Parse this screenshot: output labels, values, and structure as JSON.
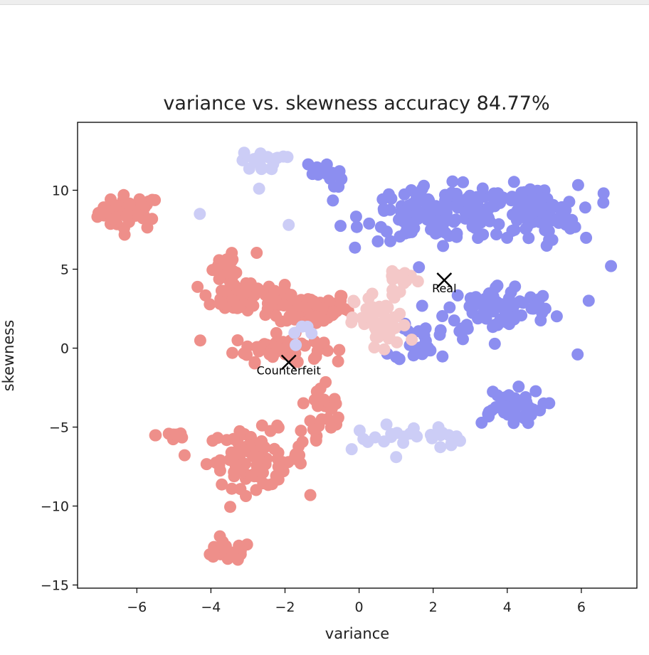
{
  "chart_data": {
    "type": "scatter",
    "title": "variance vs. skewness accuracy 84.77%",
    "xlabel": "variance",
    "ylabel": "skewness",
    "xlim": [
      -7.6,
      7.5
    ],
    "ylim": [
      -15.2,
      14.3
    ],
    "xticks": [
      -6,
      -4,
      -2,
      0,
      2,
      4,
      6
    ],
    "yticks": [
      -15,
      -10,
      -5,
      0,
      5,
      10
    ],
    "grid": false,
    "colors": {
      "counterfeit_correct": "#ee8f8a",
      "counterfeit_misclassified": "#f4c8c8",
      "real_correct": "#8c8ef0",
      "real_misclassified": "#cccdf6",
      "centroid": "#000000"
    },
    "centroids": [
      {
        "label": "Counterfeit",
        "x": -1.9,
        "y": -0.9
      },
      {
        "label": "Real",
        "x": 2.3,
        "y": 4.3
      }
    ],
    "clusters": [
      {
        "class": "counterfeit_correct",
        "cx": -6.2,
        "cy": 8.6,
        "sx": 0.7,
        "sy": 0.9,
        "n": 45
      },
      {
        "class": "counterfeit_correct",
        "cx": -3.0,
        "cy": 3.2,
        "sx": 1.1,
        "sy": 0.9,
        "n": 60
      },
      {
        "class": "counterfeit_correct",
        "cx": -1.2,
        "cy": 2.5,
        "sx": 0.8,
        "sy": 0.9,
        "n": 70
      },
      {
        "class": "counterfeit_correct",
        "cx": -2.2,
        "cy": 0.0,
        "sx": 1.0,
        "sy": 0.7,
        "n": 50
      },
      {
        "class": "counterfeit_correct",
        "cx": -3.5,
        "cy": 5.2,
        "sx": 0.6,
        "sy": 0.8,
        "n": 15
      },
      {
        "class": "counterfeit_correct",
        "cx": -2.8,
        "cy": -7.0,
        "sx": 1.1,
        "sy": 1.5,
        "n": 80
      },
      {
        "class": "counterfeit_correct",
        "cx": -1.0,
        "cy": -4.5,
        "sx": 0.6,
        "sy": 2.0,
        "n": 30
      },
      {
        "class": "counterfeit_correct",
        "cx": -5.0,
        "cy": -5.5,
        "sx": 0.4,
        "sy": 0.4,
        "n": 10
      },
      {
        "class": "counterfeit_correct",
        "cx": -3.6,
        "cy": -12.9,
        "sx": 0.6,
        "sy": 0.5,
        "n": 25
      },
      {
        "class": "counterfeit_misclassified",
        "cx": 0.6,
        "cy": 1.5,
        "sx": 0.6,
        "sy": 1.7,
        "n": 60
      },
      {
        "class": "counterfeit_misclassified",
        "cx": 1.2,
        "cy": 4.5,
        "sx": 0.6,
        "sy": 0.4,
        "n": 15
      },
      {
        "class": "real_correct",
        "cx": 2.2,
        "cy": 8.5,
        "sx": 1.7,
        "sy": 1.4,
        "n": 140
      },
      {
        "class": "real_correct",
        "cx": 4.7,
        "cy": 8.5,
        "sx": 1.0,
        "sy": 1.5,
        "n": 90
      },
      {
        "class": "real_correct",
        "cx": 3.8,
        "cy": 2.5,
        "sx": 1.2,
        "sy": 1.3,
        "n": 80
      },
      {
        "class": "real_correct",
        "cx": 1.8,
        "cy": 0.5,
        "sx": 0.7,
        "sy": 1.2,
        "n": 25
      },
      {
        "class": "real_correct",
        "cx": 4.0,
        "cy": -3.7,
        "sx": 0.8,
        "sy": 0.9,
        "n": 50
      },
      {
        "class": "real_correct",
        "cx": -1.0,
        "cy": 11.0,
        "sx": 0.5,
        "sy": 0.7,
        "n": 15
      },
      {
        "class": "real_misclassified",
        "cx": -2.6,
        "cy": 11.8,
        "sx": 0.5,
        "sy": 0.5,
        "n": 18
      },
      {
        "class": "real_misclassified",
        "cx": 1.8,
        "cy": -5.6,
        "sx": 0.8,
        "sy": 0.7,
        "n": 20
      },
      {
        "class": "real_misclassified",
        "cx": 0.4,
        "cy": -5.5,
        "sx": 0.4,
        "sy": 0.8,
        "n": 6
      },
      {
        "class": "real_misclassified",
        "cx": -1.6,
        "cy": 1.0,
        "sx": 0.4,
        "sy": 0.6,
        "n": 5
      }
    ],
    "outliers": [
      {
        "class": "real_correct",
        "x": 6.8,
        "y": 5.2
      },
      {
        "class": "real_correct",
        "x": 6.6,
        "y": 9.8
      },
      {
        "class": "real_correct",
        "x": 6.2,
        "y": 3.0
      },
      {
        "class": "real_correct",
        "x": 5.9,
        "y": -0.4
      },
      {
        "class": "real_misclassified",
        "x": -4.3,
        "y": 8.5
      },
      {
        "class": "real_misclassified",
        "x": -1.9,
        "y": 7.8
      },
      {
        "class": "real_misclassified",
        "x": -2.7,
        "y": 10.1
      },
      {
        "class": "real_misclassified",
        "x": 1.0,
        "y": -6.9
      },
      {
        "class": "real_misclassified",
        "x": -0.2,
        "y": -6.4
      }
    ]
  }
}
